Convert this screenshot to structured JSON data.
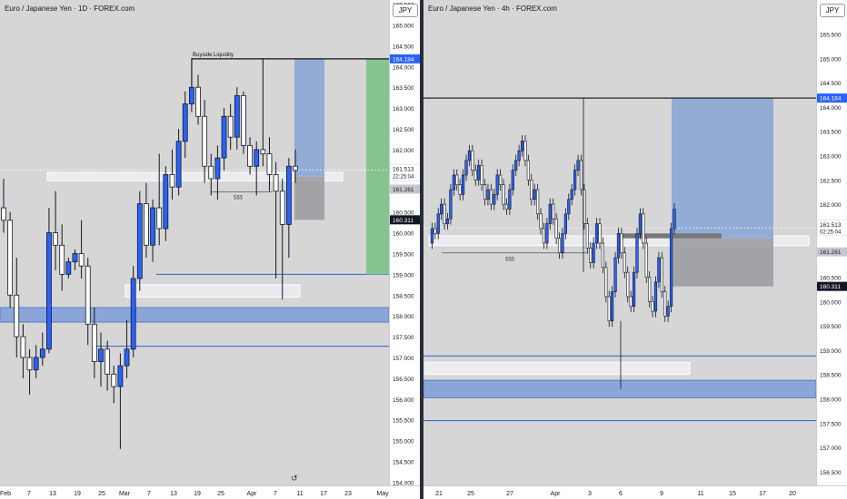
{
  "left": {
    "title": "Euro / Japanese Yen · 1D · FOREX.com",
    "currency": "JPY",
    "y_ticks": [
      "165.500",
      "165.000",
      "164.500",
      "164.000",
      "163.500",
      "163.000",
      "162.500",
      "162.000",
      "161.500",
      "161.000",
      "160.500",
      "160.000",
      "159.500",
      "159.000",
      "158.500",
      "158.000",
      "157.500",
      "157.000",
      "156.500",
      "156.000",
      "155.500",
      "155.000",
      "154.500",
      "154.000"
    ],
    "x_ticks": [
      "Feb",
      "7",
      "13",
      "19",
      "25",
      "Mar",
      "7",
      "13",
      "19",
      "25",
      "Apr",
      "7",
      "11",
      "17",
      "23",
      "May"
    ],
    "annotations": {
      "buyside": "Buyside Liquidity",
      "sss": "$$$"
    },
    "price_labels": {
      "target": "164.184",
      "current": "161.513",
      "countdown": "22:25:04",
      "entry": "161.261",
      "stop": "160.311"
    }
  },
  "right": {
    "title": "Euro / Japanese Yen · 4h · FOREX.com",
    "currency": "JPY",
    "y_ticks": [
      "166.000",
      "165.500",
      "165.000",
      "164.500",
      "164.000",
      "163.500",
      "163.000",
      "162.500",
      "162.000",
      "161.500",
      "161.000",
      "160.500",
      "160.000",
      "159.500",
      "159.000",
      "158.500",
      "158.000",
      "157.500",
      "157.000",
      "156.500"
    ],
    "x_ticks": [
      "21",
      "25",
      "27",
      "Apr",
      "3",
      "6",
      "9",
      "11",
      "15",
      "17",
      "20"
    ],
    "annotations": {
      "sss": "$$$"
    },
    "price_labels": {
      "target": "164.184",
      "current": "161.513",
      "countdown": "02:25:04",
      "entry": "161.261",
      "stop": "160.311"
    }
  },
  "chart_data": [
    {
      "type": "candlestick",
      "title": "Euro / Japanese Yen · 1D · FOREX.com",
      "ylim": [
        153.9,
        165.6
      ],
      "candles_ohlc": [
        [
          160.6,
          161.3,
          160.0,
          160.3
        ],
        [
          160.3,
          160.5,
          158.2,
          158.5
        ],
        [
          158.5,
          159.4,
          157.0,
          157.5
        ],
        [
          157.5,
          157.8,
          156.5,
          157.0
        ],
        [
          157.0,
          157.2,
          156.1,
          156.7
        ],
        [
          156.7,
          157.3,
          156.5,
          157.0
        ],
        [
          157.0,
          157.6,
          156.8,
          157.2
        ],
        [
          157.2,
          160.6,
          157.1,
          160.0
        ],
        [
          160.0,
          161.0,
          159.1,
          159.7
        ],
        [
          159.7,
          160.2,
          158.6,
          159.0
        ],
        [
          159.0,
          159.4,
          158.9,
          159.3
        ],
        [
          159.3,
          159.6,
          159.1,
          159.5
        ],
        [
          159.5,
          160.3,
          158.9,
          159.2
        ],
        [
          159.2,
          159.4,
          157.3,
          157.8
        ],
        [
          157.8,
          158.2,
          156.5,
          156.9
        ],
        [
          156.9,
          157.6,
          156.3,
          157.2
        ],
        [
          157.2,
          157.4,
          156.2,
          156.6
        ],
        [
          156.6,
          156.8,
          155.9,
          156.3
        ],
        [
          156.3,
          157.1,
          154.8,
          156.8
        ],
        [
          156.8,
          157.9,
          156.5,
          157.2
        ],
        [
          157.2,
          159.2,
          157.0,
          158.9
        ],
        [
          158.9,
          161.0,
          158.6,
          160.7
        ],
        [
          160.7,
          161.2,
          159.4,
          159.7
        ],
        [
          159.7,
          160.8,
          159.3,
          160.6
        ],
        [
          160.6,
          161.9,
          159.7,
          160.1
        ],
        [
          160.1,
          161.6,
          159.8,
          161.4
        ],
        [
          161.4,
          162.0,
          160.8,
          161.1
        ],
        [
          161.1,
          162.5,
          160.9,
          162.2
        ],
        [
          162.2,
          163.4,
          161.8,
          163.1
        ],
        [
          163.1,
          164.2,
          162.9,
          163.5
        ],
        [
          163.5,
          163.8,
          162.6,
          162.8
        ],
        [
          162.8,
          163.2,
          161.2,
          161.6
        ],
        [
          161.6,
          161.9,
          160.9,
          161.3
        ],
        [
          161.3,
          162.1,
          160.8,
          161.8
        ],
        [
          161.8,
          163.0,
          161.5,
          162.8
        ],
        [
          162.8,
          163.1,
          162.0,
          162.3
        ],
        [
          162.3,
          163.5,
          162.0,
          163.3
        ],
        [
          163.3,
          163.4,
          161.9,
          162.1
        ],
        [
          162.1,
          162.3,
          161.4,
          161.6
        ],
        [
          161.6,
          162.2,
          160.9,
          162.0
        ],
        [
          162.0,
          164.2,
          161.6,
          161.9
        ],
        [
          161.9,
          162.3,
          161.0,
          161.4
        ],
        [
          161.4,
          161.7,
          158.9,
          161.0
        ],
        [
          161.0,
          161.3,
          158.4,
          160.2
        ],
        [
          160.2,
          161.8,
          159.4,
          161.6
        ],
        [
          161.6,
          162.0,
          161.2,
          161.5
        ]
      ],
      "boxes": [
        {
          "label": "target zone",
          "from": 161.5,
          "to": 164.184
        },
        {
          "label": "stop zone",
          "from": 160.311,
          "to": 161.261
        },
        {
          "label": "green target",
          "from": 159.0,
          "to": 164.184
        }
      ],
      "levels": {
        "buyside_liquidity": 164.184,
        "sss": 161.0,
        "current": 161.513
      }
    },
    {
      "type": "candlestick",
      "title": "Euro / Japanese Yen · 4h · FOREX.com",
      "ylim": [
        156.2,
        166.2
      ],
      "levels": {
        "high_line": 164.184,
        "current": 161.513,
        "entry": 161.261,
        "stop": 160.311
      }
    }
  ]
}
